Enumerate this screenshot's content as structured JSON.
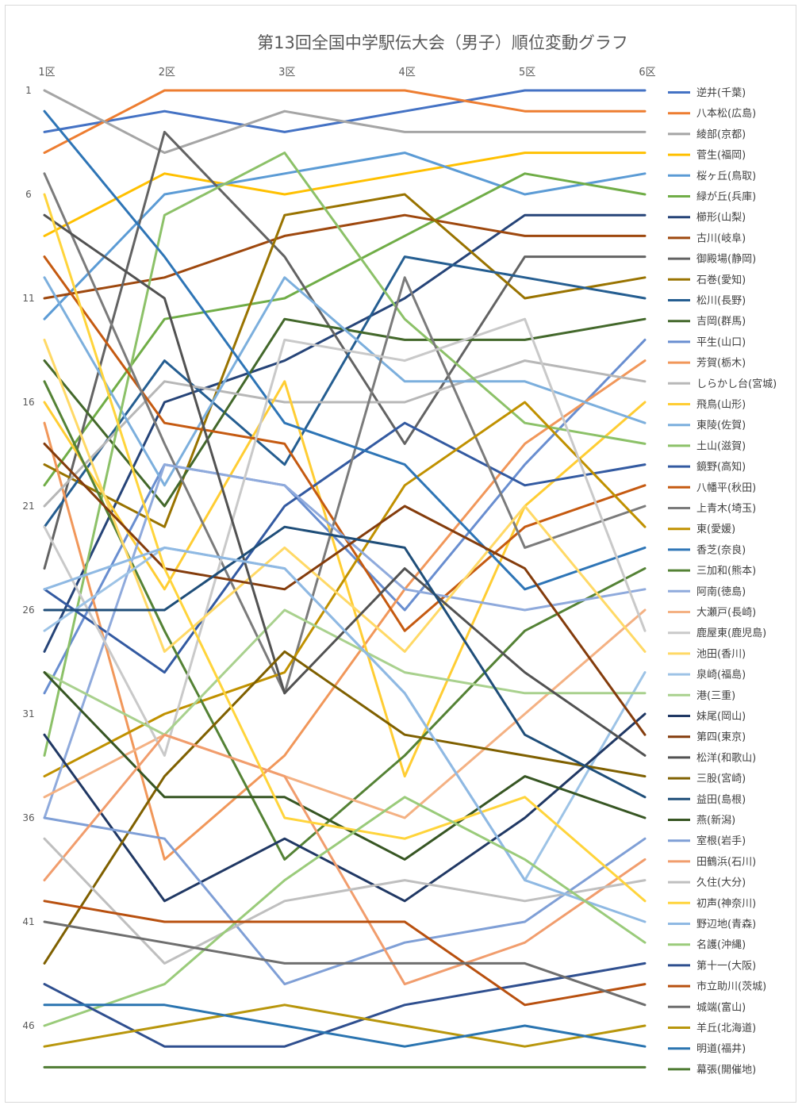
{
  "chart_data": {
    "type": "line",
    "title": "第13回全国中学駅伝大会（男子）順位変動グラフ",
    "categories": [
      "1区",
      "2区",
      "3区",
      "4区",
      "5区",
      "6区"
    ],
    "y_axis": {
      "reversed": true,
      "min": 1,
      "max": 48,
      "ticks": [
        1,
        6,
        11,
        16,
        21,
        26,
        31,
        36,
        41,
        46
      ]
    },
    "legend_position": "right",
    "grid": false,
    "series": [
      {
        "name": "逆井(千葉)",
        "color": "#4472C4",
        "values": [
          3,
          2,
          3,
          2,
          1,
          1
        ]
      },
      {
        "name": "八本松(広島)",
        "color": "#ED7D31",
        "values": [
          4,
          1,
          1,
          1,
          2,
          2
        ]
      },
      {
        "name": "綾部(京都)",
        "color": "#A5A5A5",
        "values": [
          1,
          4,
          2,
          3,
          3,
          3
        ]
      },
      {
        "name": "菅生(福岡)",
        "color": "#FFC000",
        "values": [
          8,
          5,
          6,
          5,
          4,
          4
        ]
      },
      {
        "name": "桜ヶ丘(鳥取)",
        "color": "#5B9BD5",
        "values": [
          12,
          6,
          5,
          4,
          6,
          5
        ]
      },
      {
        "name": "緑が丘(兵庫)",
        "color": "#70AD47",
        "values": [
          20,
          12,
          11,
          8,
          5,
          6
        ]
      },
      {
        "name": "櫛形(山梨)",
        "color": "#264478",
        "values": [
          28,
          16,
          14,
          11,
          7,
          7
        ]
      },
      {
        "name": "古川(岐阜)",
        "color": "#9E480E",
        "values": [
          11,
          10,
          8,
          7,
          8,
          8
        ]
      },
      {
        "name": "御殿場(静岡)",
        "color": "#636363",
        "values": [
          24,
          3,
          9,
          18,
          9,
          9
        ]
      },
      {
        "name": "石巻(愛知)",
        "color": "#997300",
        "values": [
          19,
          22,
          7,
          6,
          11,
          10
        ]
      },
      {
        "name": "松川(長野)",
        "color": "#255E91",
        "values": [
          22,
          14,
          19,
          9,
          10,
          11
        ]
      },
      {
        "name": "吉岡(群馬)",
        "color": "#43682B",
        "values": [
          14,
          21,
          12,
          13,
          13,
          12
        ]
      },
      {
        "name": "平生(山口)",
        "color": "#698ED0",
        "values": [
          30,
          19,
          20,
          26,
          19,
          13
        ]
      },
      {
        "name": "芳賀(栃木)",
        "color": "#F1975A",
        "values": [
          17,
          38,
          33,
          25,
          18,
          14
        ]
      },
      {
        "name": "しらかし台(宮城)",
        "color": "#B7B7B7",
        "values": [
          21,
          15,
          16,
          16,
          14,
          15
        ]
      },
      {
        "name": "飛鳥(山形)",
        "color": "#FFCD33",
        "values": [
          16,
          25,
          15,
          34,
          21,
          16
        ]
      },
      {
        "name": "東陵(佐賀)",
        "color": "#7CAFDD",
        "values": [
          10,
          20,
          10,
          15,
          15,
          17
        ]
      },
      {
        "name": "土山(滋賀)",
        "color": "#8CC168",
        "values": [
          33,
          7,
          4,
          12,
          17,
          18
        ]
      },
      {
        "name": "鏡野(高知)",
        "color": "#335AA1",
        "values": [
          25,
          29,
          21,
          17,
          20,
          19
        ]
      },
      {
        "name": "八幡平(秋田)",
        "color": "#C55A11",
        "values": [
          9,
          17,
          18,
          27,
          22,
          20
        ]
      },
      {
        "name": "上青木(埼玉)",
        "color": "#7B7B7B",
        "values": [
          5,
          18,
          30,
          10,
          23,
          21
        ]
      },
      {
        "name": "東(愛媛)",
        "color": "#C09100",
        "values": [
          34,
          31,
          29,
          20,
          16,
          22
        ]
      },
      {
        "name": "香芝(奈良)",
        "color": "#2E75B6",
        "values": [
          2,
          9,
          17,
          19,
          25,
          23
        ]
      },
      {
        "name": "三加和(熊本)",
        "color": "#548235",
        "values": [
          15,
          27,
          38,
          33,
          27,
          24
        ]
      },
      {
        "name": "阿南(徳島)",
        "color": "#8FAADC",
        "values": [
          36,
          19,
          20,
          25,
          26,
          25
        ]
      },
      {
        "name": "大瀬戸(長崎)",
        "color": "#F4B183",
        "values": [
          35,
          32,
          34,
          36,
          31,
          26
        ]
      },
      {
        "name": "鹿屋東(鹿児島)",
        "color": "#C9C9C9",
        "values": [
          22,
          33,
          13,
          14,
          12,
          27
        ]
      },
      {
        "name": "池田(香川)",
        "color": "#FFD966",
        "values": [
          13,
          28,
          23,
          28,
          21,
          28
        ]
      },
      {
        "name": "泉崎(福島)",
        "color": "#9DC3E6",
        "values": [
          27,
          23,
          24,
          30,
          39,
          29
        ]
      },
      {
        "name": "港(三重)",
        "color": "#A9D18E",
        "values": [
          29,
          32,
          26,
          29,
          30,
          30
        ]
      },
      {
        "name": "妹尾(岡山)",
        "color": "#203864",
        "values": [
          32,
          40,
          37,
          40,
          36,
          31
        ]
      },
      {
        "name": "第四(東京)",
        "color": "#843C0C",
        "values": [
          18,
          24,
          25,
          21,
          24,
          32
        ]
      },
      {
        "name": "松洋(和歌山)",
        "color": "#525252",
        "values": [
          7,
          11,
          30,
          24,
          29,
          33
        ]
      },
      {
        "name": "三股(宮崎)",
        "color": "#7F6000",
        "values": [
          43,
          34,
          28,
          32,
          33,
          34
        ]
      },
      {
        "name": "益田(島根)",
        "color": "#1F4E79",
        "values": [
          26,
          26,
          22,
          23,
          32,
          35
        ]
      },
      {
        "name": "燕(新潟)",
        "color": "#375623",
        "values": [
          29,
          35,
          35,
          38,
          34,
          36
        ]
      },
      {
        "name": "室根(岩手)",
        "color": "#7F9FD6",
        "values": [
          36,
          37,
          44,
          42,
          41,
          37
        ]
      },
      {
        "name": "田鶴浜(石川)",
        "color": "#F19D6D",
        "values": [
          39,
          32,
          34,
          44,
          42,
          38
        ]
      },
      {
        "name": "久住(大分)",
        "color": "#BFBFBF",
        "values": [
          37,
          43,
          40,
          39,
          40,
          39
        ]
      },
      {
        "name": "初声(神奈川)",
        "color": "#FFD43B",
        "values": [
          6,
          24,
          36,
          37,
          35,
          40
        ]
      },
      {
        "name": "野辺地(青森)",
        "color": "#8FB9E3",
        "values": [
          25,
          23,
          24,
          30,
          39,
          41
        ]
      },
      {
        "name": "名護(沖縄)",
        "color": "#9ACB7A",
        "values": [
          46,
          44,
          39,
          35,
          38,
          42
        ]
      },
      {
        "name": "第十一(大阪)",
        "color": "#2F4F8F",
        "values": [
          44,
          47,
          47,
          45,
          44,
          43
        ]
      },
      {
        "name": "市立助川(茨城)",
        "color": "#B8500F",
        "values": [
          40,
          41,
          41,
          41,
          45,
          44
        ]
      },
      {
        "name": "城端(富山)",
        "color": "#6E6E6E",
        "values": [
          41,
          42,
          43,
          43,
          43,
          45
        ]
      },
      {
        "name": "羊丘(北海道)",
        "color": "#B8960C",
        "values": [
          47,
          46,
          45,
          46,
          47,
          46
        ]
      },
      {
        "name": "明道(福井)",
        "color": "#2A74B0",
        "values": [
          45,
          45,
          46,
          47,
          46,
          47
        ]
      },
      {
        "name": "幕張(開催地)",
        "color": "#4E7B32",
        "values": [
          48,
          48,
          48,
          48,
          48,
          48
        ]
      }
    ]
  }
}
